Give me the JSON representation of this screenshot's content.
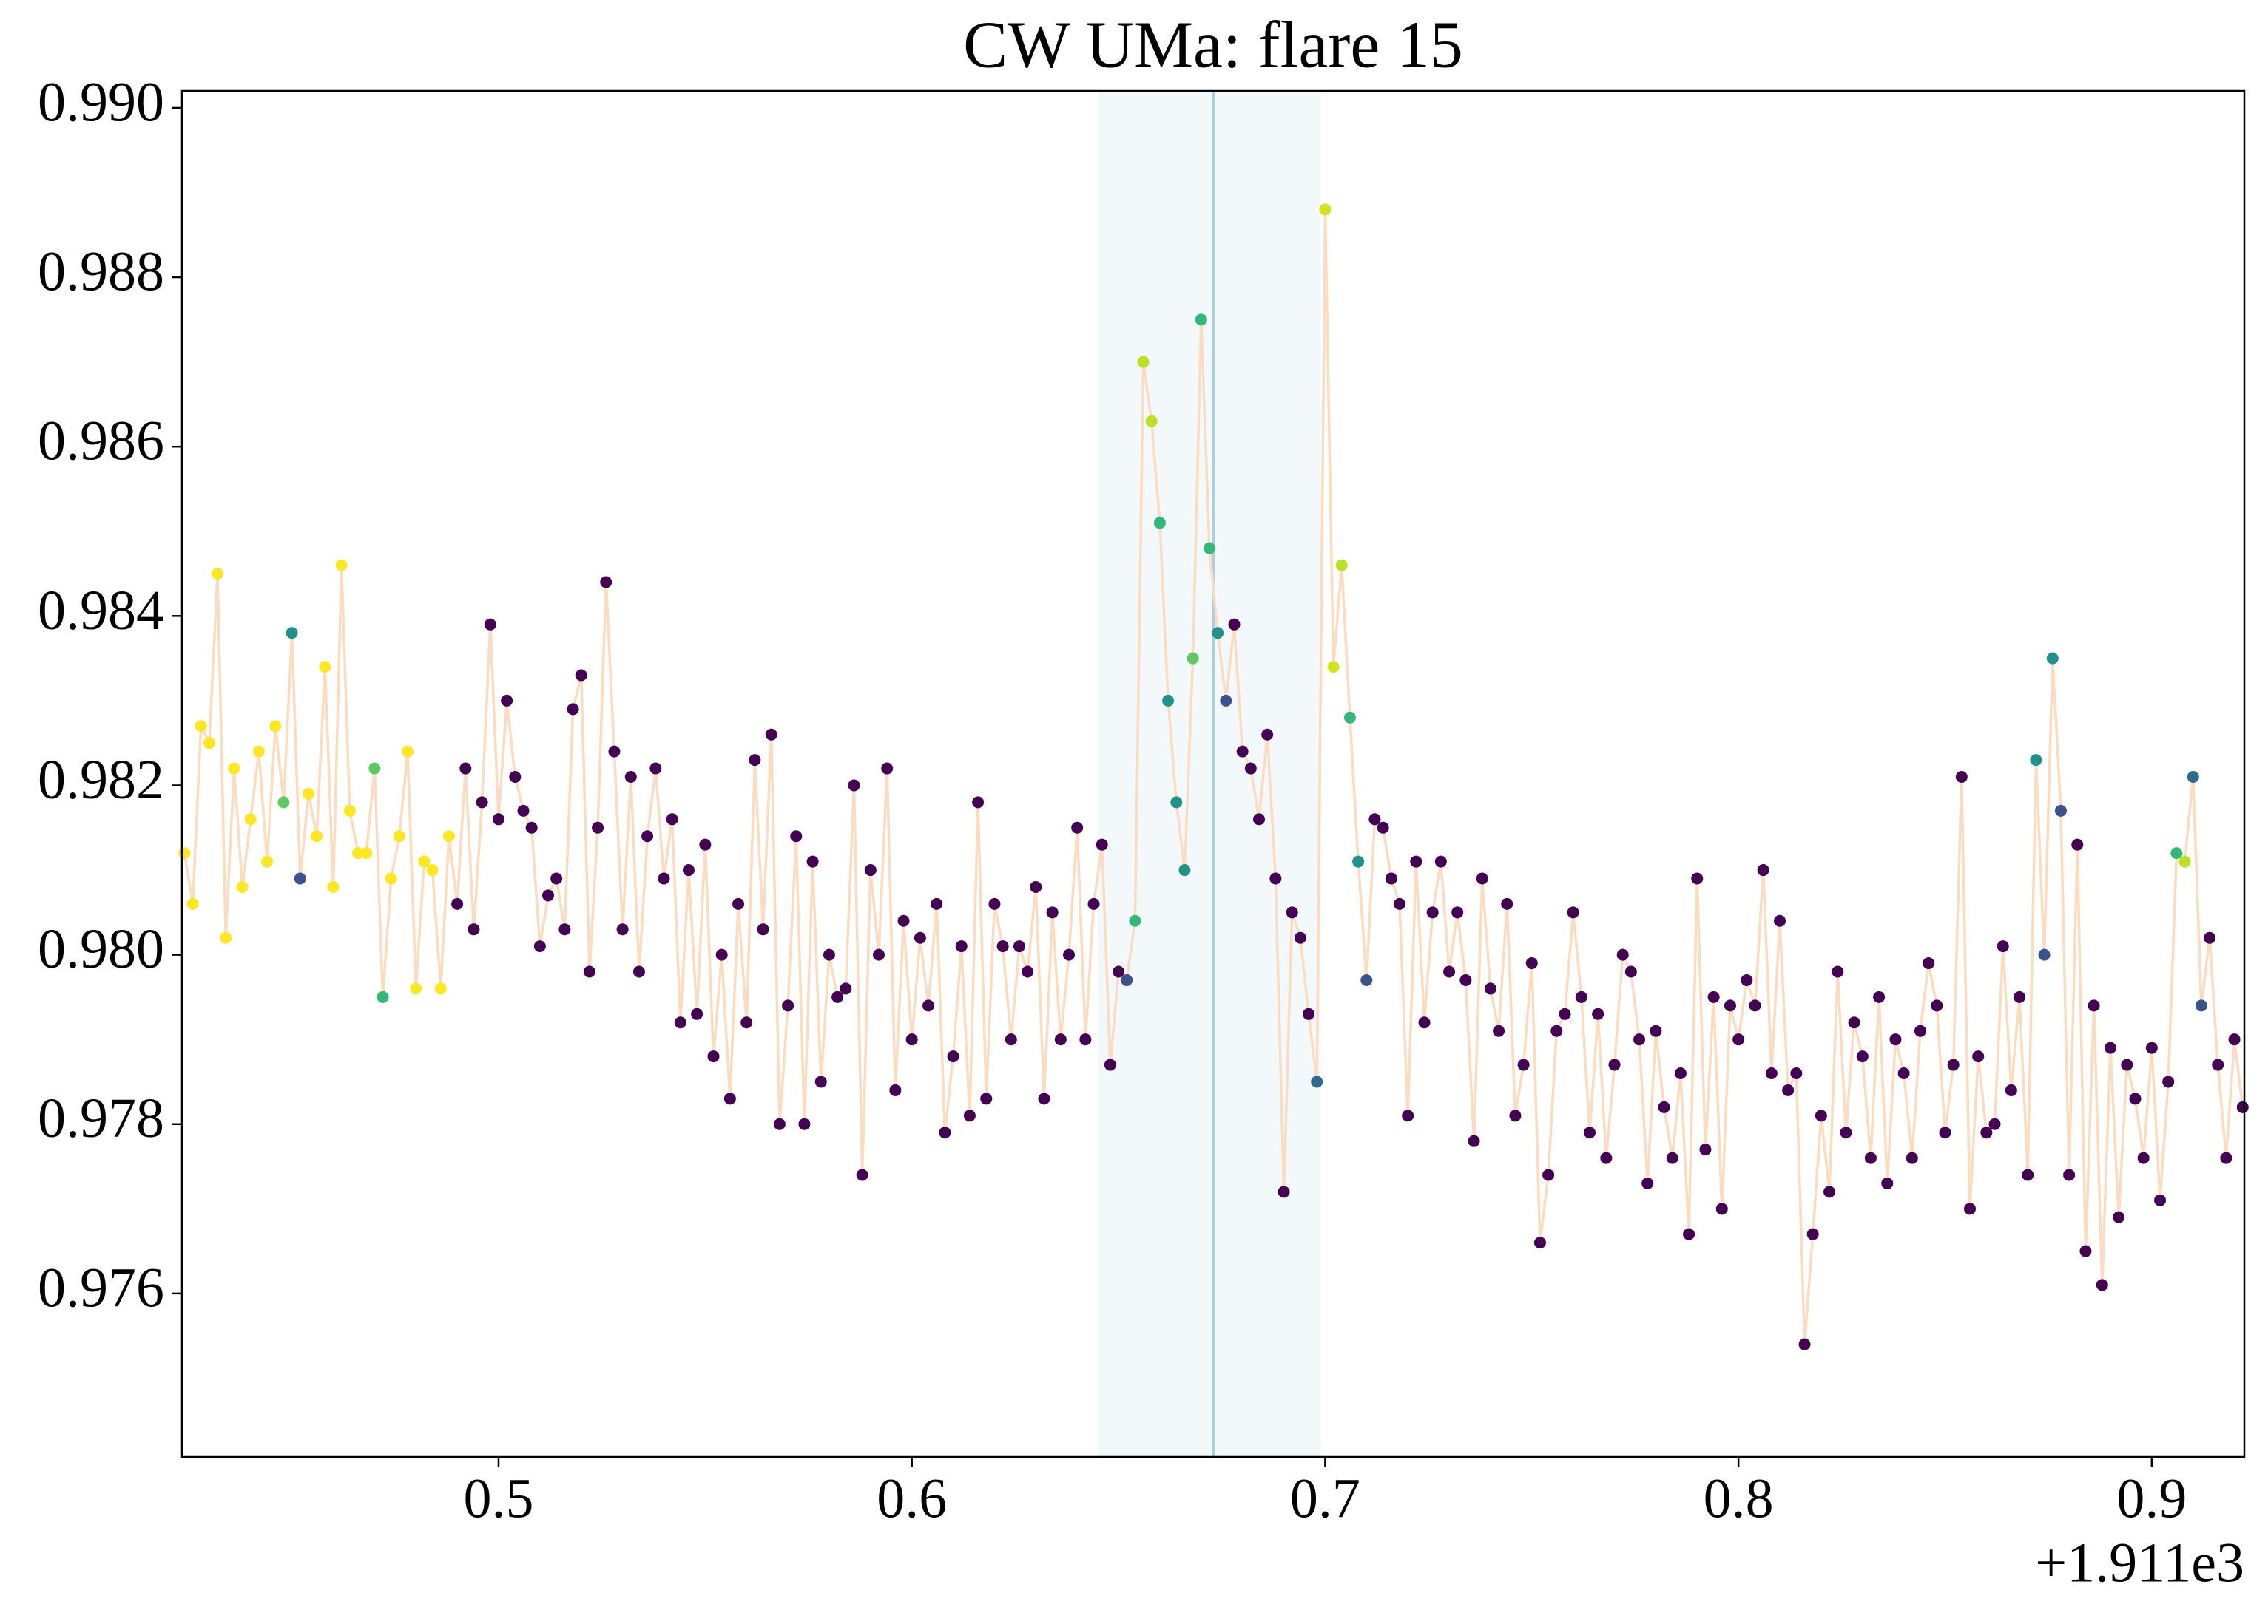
{
  "chart_data": {
    "type": "scatter",
    "title": "CW UMa: flare 15",
    "x_offset_label": "+1.911e3",
    "xlim": [
      1911.4234,
      1911.9224
    ],
    "ylim": [
      0.97407,
      0.9902
    ],
    "xticks": [
      {
        "value": 1911.5,
        "label": "0.5"
      },
      {
        "value": 1911.6,
        "label": "0.6"
      },
      {
        "value": 1911.7,
        "label": "0.7"
      },
      {
        "value": 1911.8,
        "label": "0.8"
      },
      {
        "value": 1911.9,
        "label": "0.9"
      }
    ],
    "yticks": [
      0.976,
      0.978,
      {
        "value": 0.98,
        "label": "0.980"
      },
      0.982,
      0.984,
      0.986,
      0.988,
      {
        "value": 0.99,
        "label": "0.990"
      }
    ],
    "span": [
      1911.645,
      1911.699
    ],
    "span_color": "#add8e6",
    "vline": 1911.673,
    "vline_color": "#a9cfdc",
    "line_color": "#fcdcc0",
    "x": [
      1911.424,
      1911.426,
      1911.428,
      1911.43,
      1911.432,
      1911.434,
      1911.436,
      1911.438,
      1911.44,
      1911.442,
      1911.444,
      1911.446,
      1911.448,
      1911.45,
      1911.452,
      1911.454,
      1911.456,
      1911.458,
      1911.46,
      1911.462,
      1911.464,
      1911.466,
      1911.468,
      1911.47,
      1911.472,
      1911.474,
      1911.476,
      1911.478,
      1911.48,
      1911.482,
      1911.484,
      1911.486,
      1911.488,
      1911.49,
      1911.492,
      1911.494,
      1911.496,
      1911.498,
      1911.5,
      1911.502,
      1911.504,
      1911.506,
      1911.508,
      1911.51,
      1911.512,
      1911.514,
      1911.516,
      1911.518,
      1911.52,
      1911.522,
      1911.524,
      1911.526,
      1911.528,
      1911.53,
      1911.532,
      1911.534,
      1911.536,
      1911.538,
      1911.54,
      1911.542,
      1911.544,
      1911.546,
      1911.548,
      1911.55,
      1911.552,
      1911.554,
      1911.556,
      1911.558,
      1911.56,
      1911.562,
      1911.564,
      1911.566,
      1911.568,
      1911.57,
      1911.572,
      1911.574,
      1911.576,
      1911.578,
      1911.58,
      1911.582,
      1911.584,
      1911.586,
      1911.588,
      1911.59,
      1911.592,
      1911.594,
      1911.596,
      1911.598,
      1911.6,
      1911.602,
      1911.604,
      1911.606,
      1911.608,
      1911.61,
      1911.612,
      1911.614,
      1911.616,
      1911.618,
      1911.62,
      1911.622,
      1911.624,
      1911.626,
      1911.628,
      1911.63,
      1911.632,
      1911.634,
      1911.636,
      1911.638,
      1911.64,
      1911.642,
      1911.644,
      1911.646,
      1911.648,
      1911.65,
      1911.652,
      1911.654,
      1911.656,
      1911.658,
      1911.66,
      1911.662,
      1911.664,
      1911.666,
      1911.668,
      1911.67,
      1911.672,
      1911.674,
      1911.676,
      1911.678,
      1911.68,
      1911.682,
      1911.684,
      1911.686,
      1911.688,
      1911.69,
      1911.692,
      1911.694,
      1911.696,
      1911.698,
      1911.7,
      1911.702,
      1911.704,
      1911.706,
      1911.708,
      1911.71,
      1911.712,
      1911.714,
      1911.716,
      1911.718,
      1911.72,
      1911.722,
      1911.724,
      1911.726,
      1911.728,
      1911.73,
      1911.732,
      1911.734,
      1911.736,
      1911.738,
      1911.74,
      1911.742,
      1911.744,
      1911.746,
      1911.748,
      1911.75,
      1911.752,
      1911.754,
      1911.756,
      1911.758,
      1911.76,
      1911.762,
      1911.764,
      1911.766,
      1911.768,
      1911.77,
      1911.772,
      1911.774,
      1911.776,
      1911.778,
      1911.78,
      1911.782,
      1911.784,
      1911.786,
      1911.788,
      1911.79,
      1911.792,
      1911.794,
      1911.796,
      1911.798,
      1911.8,
      1911.802,
      1911.804,
      1911.806,
      1911.808,
      1911.81,
      1911.812,
      1911.814,
      1911.816,
      1911.818,
      1911.82,
      1911.822,
      1911.824,
      1911.826,
      1911.828,
      1911.83,
      1911.832,
      1911.834,
      1911.836,
      1911.838,
      1911.84,
      1911.842,
      1911.844,
      1911.846,
      1911.848,
      1911.85,
      1911.852,
      1911.854,
      1911.856,
      1911.858,
      1911.86,
      1911.862,
      1911.864,
      1911.866,
      1911.868,
      1911.87,
      1911.872,
      1911.874,
      1911.876,
      1911.878,
      1911.88,
      1911.882,
      1911.884,
      1911.886,
      1911.888,
      1911.89,
      1911.892,
      1911.894,
      1911.896,
      1911.898,
      1911.9,
      1911.902,
      1911.904,
      1911.906,
      1911.908,
      1911.91,
      1911.912,
      1911.914,
      1911.916,
      1911.918,
      1911.92,
      1911.922
    ],
    "values": [
      0.9812,
      0.9806,
      0.9827,
      0.9825,
      0.9845,
      0.9802,
      0.9822,
      0.9808,
      0.9816,
      0.9824,
      0.9811,
      0.9827,
      0.9818,
      0.9838,
      0.9809,
      0.9819,
      0.9814,
      0.9834,
      0.9808,
      0.9846,
      0.9817,
      0.9812,
      0.9812,
      0.9822,
      0.9795,
      0.9809,
      0.9814,
      0.9824,
      0.9796,
      0.9811,
      0.981,
      0.9796,
      0.9814,
      0.9806,
      0.9822,
      0.9803,
      0.9818,
      0.9839,
      0.9816,
      0.983,
      0.9821,
      0.9817,
      0.9815,
      0.9801,
      0.9807,
      0.9809,
      0.9803,
      0.9829,
      0.9833,
      0.9798,
      0.9815,
      0.9844,
      0.9824,
      0.9803,
      0.9821,
      0.9798,
      0.9814,
      0.9822,
      0.9809,
      0.9816,
      0.9792,
      0.981,
      0.9793,
      0.9813,
      0.9788,
      0.98,
      0.9783,
      0.9806,
      0.9792,
      0.9823,
      0.9803,
      0.9826,
      0.978,
      0.9794,
      0.9814,
      0.978,
      0.9811,
      0.9785,
      0.98,
      0.9795,
      0.9796,
      0.982,
      0.9774,
      0.981,
      0.98,
      0.9822,
      0.9784,
      0.9804,
      0.979,
      0.9802,
      0.9794,
      0.9806,
      0.9779,
      0.9788,
      0.9801,
      0.9781,
      0.9818,
      0.9783,
      0.9806,
      0.9801,
      0.979,
      0.9801,
      0.9798,
      0.9808,
      0.9783,
      0.9805,
      0.979,
      0.98,
      0.9815,
      0.979,
      0.9806,
      0.9813,
      0.9787,
      0.9798,
      0.9797,
      0.9804,
      0.987,
      0.9863,
      0.9851,
      0.983,
      0.9818,
      0.981,
      0.9835,
      0.9875,
      0.9848,
      0.9838,
      0.983,
      0.9839,
      0.9824,
      0.9822,
      0.9816,
      0.9826,
      0.9809,
      0.9772,
      0.9805,
      0.9802,
      0.9793,
      0.9785,
      0.9888,
      0.9834,
      0.9846,
      0.9828,
      0.9811,
      0.9797,
      0.9816,
      0.9815,
      0.9809,
      0.9806,
      0.9781,
      0.9811,
      0.9792,
      0.9805,
      0.9811,
      0.9798,
      0.9805,
      0.9797,
      0.9778,
      0.9809,
      0.9796,
      0.9791,
      0.9806,
      0.9781,
      0.9787,
      0.9799,
      0.9766,
      0.9774,
      0.9791,
      0.9793,
      0.9805,
      0.9795,
      0.9779,
      0.9793,
      0.9776,
      0.9787,
      0.98,
      0.9798,
      0.979,
      0.9773,
      0.9791,
      0.9782,
      0.9776,
      0.9786,
      0.9767,
      0.9809,
      0.9777,
      0.9795,
      0.977,
      0.9794,
      0.979,
      0.9797,
      0.9794,
      0.981,
      0.9786,
      0.9804,
      0.9784,
      0.9786,
      0.9754,
      0.9767,
      0.9781,
      0.9772,
      0.9798,
      0.9779,
      0.9792,
      0.9788,
      0.9776,
      0.9795,
      0.9773,
      0.979,
      0.9786,
      0.9776,
      0.9791,
      0.9799,
      0.9794,
      0.9779,
      0.9787,
      0.9821,
      0.977,
      0.9788,
      0.9779,
      0.978,
      0.9801,
      0.9784,
      0.9795,
      0.9774,
      0.9823,
      0.98,
      0.9835,
      0.9817,
      0.9774,
      0.9813,
      0.9765,
      0.9794,
      0.9761,
      0.9789,
      0.9769,
      0.9787,
      0.9783,
      0.9776,
      0.9789,
      0.9771,
      0.9785,
      0.9812,
      0.9811,
      0.9821,
      0.9794,
      0.9802,
      0.9787,
      0.9776,
      0.979,
      0.9782
    ],
    "point_colors": [
      "#fde725",
      "#fde725",
      "#fde725",
      "#fde725",
      "#fde725",
      "#fde725",
      "#fde725",
      "#fde725",
      "#fde725",
      "#fde725",
      "#fde725",
      "#fde725",
      "#5ec962",
      "#21918c",
      "#3b528b",
      "#fde725",
      "#fde725",
      "#fde725",
      "#fde725",
      "#fde725",
      "#fde725",
      "#fde725",
      "#fde725",
      "#5ec962",
      "#35b779",
      "#fde725",
      "#fde725",
      "#fde725",
      "#fde725",
      "#fde725",
      "#fde725",
      "#fde725",
      "#fde725",
      "#440154",
      "#440154",
      "#440154",
      "#440154",
      "#440154",
      "#440154",
      "#440154",
      "#440154",
      "#440154",
      "#440154",
      "#440154",
      "#440154",
      "#440154",
      "#440154",
      "#440154",
      "#440154",
      "#440154",
      "#440154",
      "#440154",
      "#440154",
      "#440154",
      "#440154",
      "#440154",
      "#440154",
      "#440154",
      "#440154",
      "#440154",
      "#440154",
      "#440154",
      "#440154",
      "#440154",
      "#440154",
      "#440154",
      "#440154",
      "#440154",
      "#440154",
      "#440154",
      "#440154",
      "#440154",
      "#440154",
      "#440154",
      "#440154",
      "#440154",
      "#440154",
      "#440154",
      "#440154",
      "#440154",
      "#440154",
      "#440154",
      "#440154",
      "#440154",
      "#440154",
      "#440154",
      "#440154",
      "#440154",
      "#440154",
      "#440154",
      "#440154",
      "#440154",
      "#440154",
      "#440154",
      "#440154",
      "#440154",
      "#440154",
      "#440154",
      "#440154",
      "#440154",
      "#440154",
      "#440154",
      "#440154",
      "#440154",
      "#440154",
      "#440154",
      "#440154",
      "#440154",
      "#440154",
      "#440154",
      "#440154",
      "#440154",
      "#440154",
      "#440154",
      "#3b528b",
      "#35b779",
      "#bddf26",
      "#bddf26",
      "#35b779",
      "#21918c",
      "#21918c",
      "#21918c",
      "#5ec962",
      "#35b779",
      "#35b779",
      "#21918c",
      "#3b528b",
      "#440154",
      "#440154",
      "#440154",
      "#440154",
      "#440154",
      "#440154",
      "#440154",
      "#440154",
      "#440154",
      "#440154",
      "#31688e",
      "#d2e21b",
      "#d2e21b",
      "#bddf26",
      "#35b779",
      "#21918c",
      "#3b528b",
      "#440154",
      "#440154",
      "#440154",
      "#440154",
      "#440154",
      "#440154",
      "#440154",
      "#440154",
      "#440154",
      "#440154",
      "#440154",
      "#440154",
      "#440154",
      "#440154",
      "#440154",
      "#440154",
      "#440154",
      "#440154",
      "#440154",
      "#440154",
      "#440154",
      "#440154",
      "#440154",
      "#440154",
      "#440154",
      "#440154",
      "#440154",
      "#440154",
      "#440154",
      "#440154",
      "#440154",
      "#440154",
      "#440154",
      "#440154",
      "#440154",
      "#440154",
      "#440154",
      "#440154",
      "#440154",
      "#440154",
      "#440154",
      "#440154",
      "#440154",
      "#440154",
      "#440154",
      "#440154",
      "#440154",
      "#440154",
      "#440154",
      "#440154",
      "#440154",
      "#440154",
      "#440154",
      "#440154",
      "#440154",
      "#440154",
      "#440154",
      "#440154",
      "#440154",
      "#440154",
      "#440154",
      "#440154",
      "#440154",
      "#440154",
      "#440154",
      "#440154",
      "#440154",
      "#440154",
      "#440154",
      "#440154",
      "#440154",
      "#440154",
      "#440154",
      "#440154",
      "#440154",
      "#440154",
      "#440154",
      "#440154",
      "#440154",
      "#440154",
      "#21918c",
      "#3b528b",
      "#21918c",
      "#3b528b",
      "#440154",
      "#440154",
      "#440154",
      "#440154",
      "#440154",
      "#440154",
      "#440154",
      "#440154",
      "#440154",
      "#440154",
      "#440154",
      "#440154",
      "#440154",
      "#35b779",
      "#bddf26",
      "#31688e",
      "#3b528b",
      "#440154",
      "#440154",
      "#440154",
      "#440154",
      "#440154"
    ]
  }
}
